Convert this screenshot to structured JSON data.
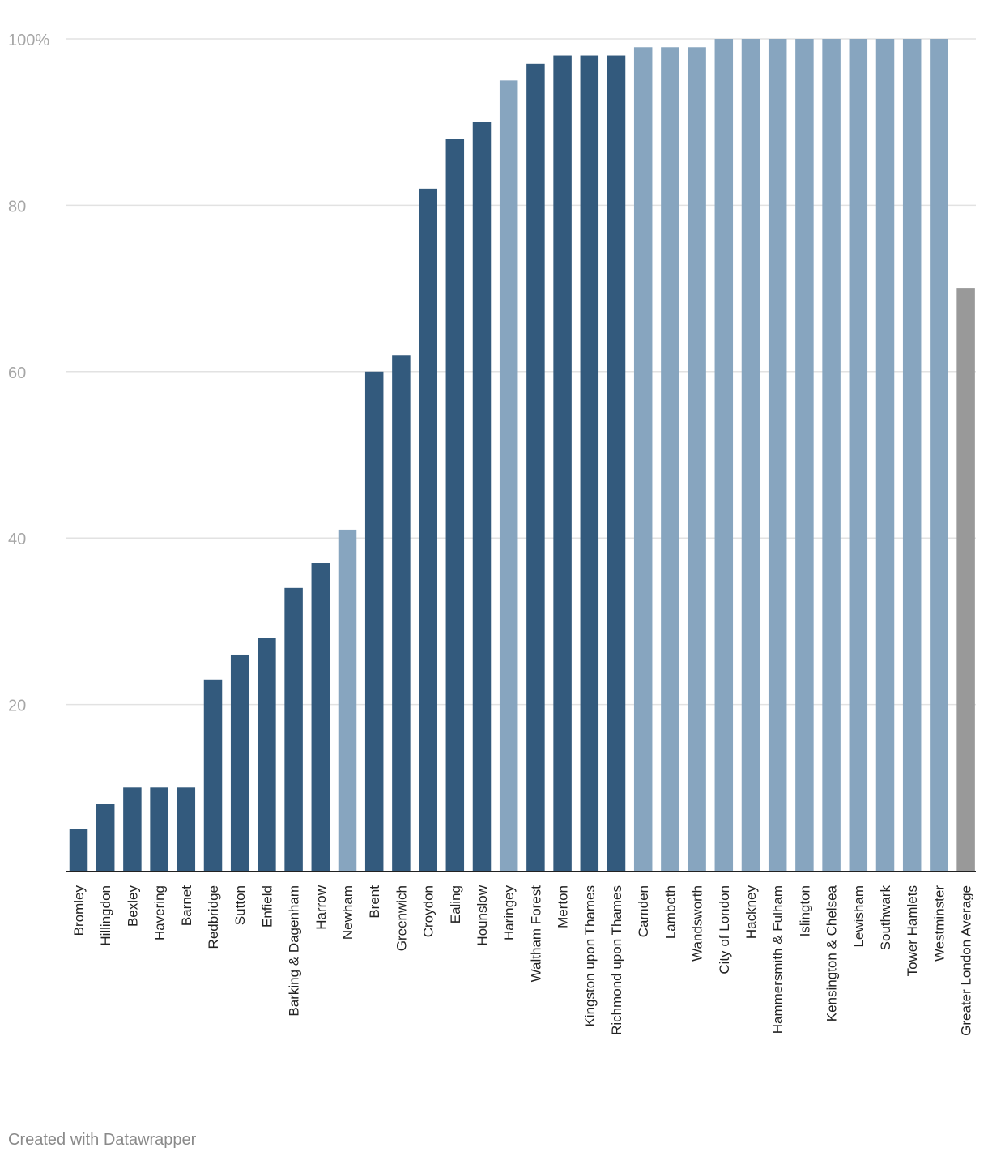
{
  "chart_data": {
    "type": "bar",
    "categories": [
      "Bromley",
      "Hillingdon",
      "Bexley",
      "Havering",
      "Barnet",
      "Redbridge",
      "Sutton",
      "Enfield",
      "Barking & Dagenham",
      "Harrow",
      "Newham",
      "Brent",
      "Greenwich",
      "Croydon",
      "Ealing",
      "Hounslow",
      "Haringey",
      "Waltham Forest",
      "Merton",
      "Kingston upon Thames",
      "Richmond upon Thames",
      "Camden",
      "Lambeth",
      "Wandsworth",
      "City of London",
      "Hackney",
      "Hammersmith & Fulham",
      "Islington",
      "Kensington & Chelsea",
      "Lewisham",
      "Southwark",
      "Tower Hamlets",
      "Westminster",
      "Greater London Average"
    ],
    "values": [
      5,
      8,
      10,
      10,
      10,
      23,
      26,
      28,
      34,
      37,
      41,
      60,
      62,
      82,
      88,
      90,
      95,
      97,
      98,
      98,
      98,
      99,
      99,
      99,
      100,
      100,
      100,
      100,
      100,
      100,
      100,
      100,
      100,
      70
    ],
    "groups": [
      "dark",
      "dark",
      "dark",
      "dark",
      "dark",
      "dark",
      "dark",
      "dark",
      "dark",
      "dark",
      "light",
      "dark",
      "dark",
      "dark",
      "dark",
      "dark",
      "light",
      "dark",
      "dark",
      "dark",
      "dark",
      "light",
      "light",
      "light",
      "light",
      "light",
      "light",
      "light",
      "light",
      "light",
      "light",
      "light",
      "light",
      "average"
    ],
    "colors": {
      "dark": "#335a7d",
      "light": "#87a5bf",
      "average": "#999999",
      "grid": "#e2e2e2",
      "axis": "#222222",
      "tick_text": "#a6a6a6",
      "label_text": "#222222"
    },
    "yticks": [
      {
        "value": 20,
        "label": "20"
      },
      {
        "value": 40,
        "label": "40"
      },
      {
        "value": 60,
        "label": "60"
      },
      {
        "value": 80,
        "label": "80"
      },
      {
        "value": 100,
        "label": "100%"
      }
    ],
    "ylim": [
      0,
      100
    ],
    "grid": true,
    "title": "",
    "xlabel": "",
    "ylabel": ""
  },
  "footer": {
    "credit": "Created with Datawrapper"
  }
}
